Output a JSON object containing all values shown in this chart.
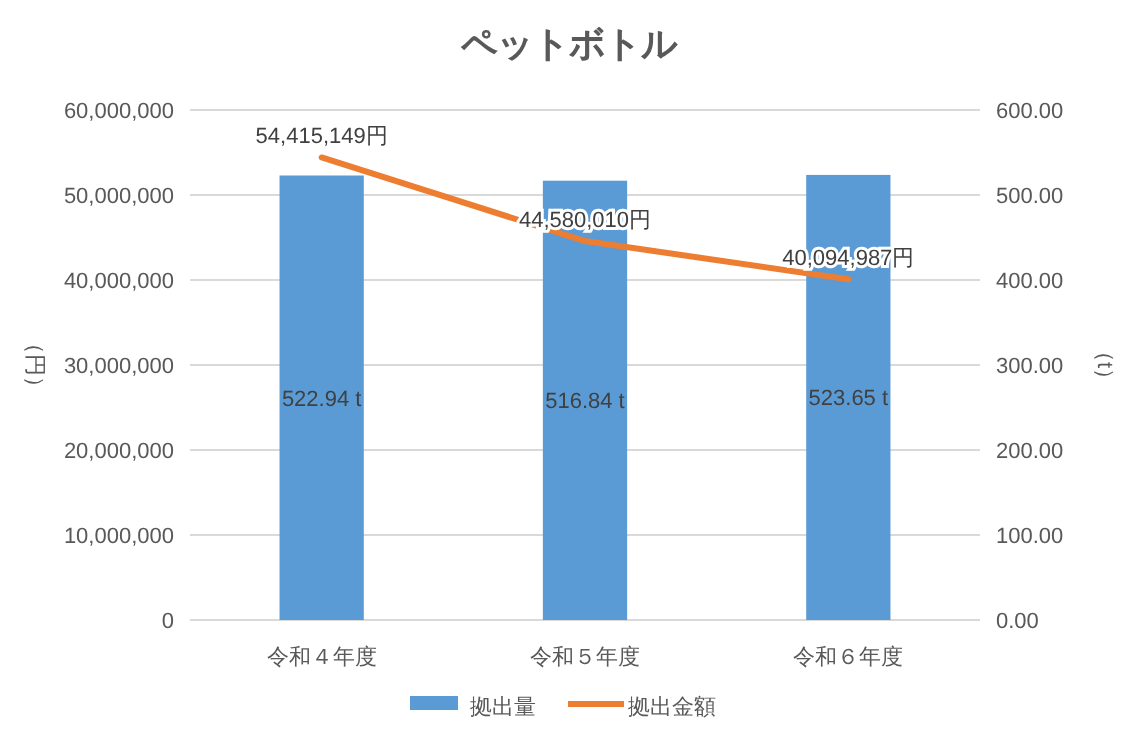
{
  "chart_data": {
    "type": "bar",
    "title": "ペットボトル",
    "ylabel": "（円）",
    "y2label": "（t）",
    "categories": [
      "令和４年度",
      "令和５年度",
      "令和６年度"
    ],
    "series": [
      {
        "name": "拠出量",
        "axis": "y2",
        "color": "#5b9bd5",
        "values": [
          522.94,
          516.84,
          523.65
        ],
        "value_labels": [
          "522.94 t",
          "516.84 t",
          "523.65 t"
        ]
      },
      {
        "name": "拠出金額",
        "type": "line",
        "axis": "y",
        "color": "#ed7d31",
        "values": [
          54415149,
          44580010,
          40094987
        ],
        "value_labels": [
          "54,415,149円",
          "44,580,010円",
          "40,094,987円"
        ]
      }
    ],
    "ylim": [
      0,
      60000000
    ],
    "yticks": [
      {
        "value": 0,
        "label": "0"
      },
      {
        "value": 10000000,
        "label": "10,000,000"
      },
      {
        "value": 20000000,
        "label": "20,000,000"
      },
      {
        "value": 30000000,
        "label": "30,000,000"
      },
      {
        "value": 40000000,
        "label": "40,000,000"
      },
      {
        "value": 50000000,
        "label": "50,000,000"
      },
      {
        "value": 60000000,
        "label": "60,000,000"
      }
    ],
    "y2lim": [
      0,
      600
    ],
    "y2ticks": [
      {
        "value": 0,
        "label": "0.00"
      },
      {
        "value": 100,
        "label": "100.00"
      },
      {
        "value": 200,
        "label": "200.00"
      },
      {
        "value": 300,
        "label": "300.00"
      },
      {
        "value": 400,
        "label": "400.00"
      },
      {
        "value": 500,
        "label": "500.00"
      },
      {
        "value": 600,
        "label": "600.00"
      }
    ],
    "grid": "y",
    "legend": "bottom"
  }
}
